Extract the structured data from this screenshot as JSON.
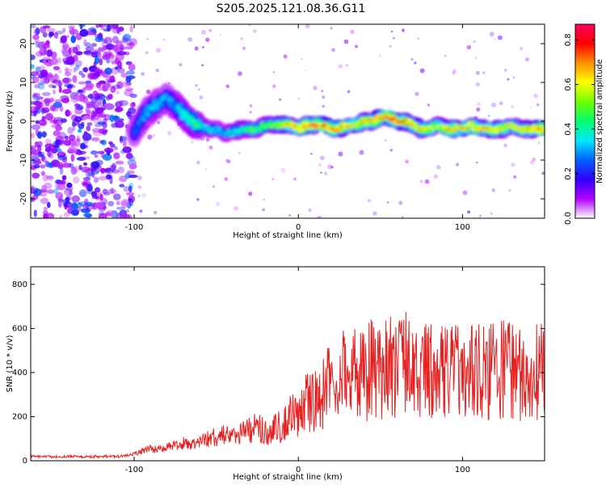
{
  "title": "S205.2025.121.08.36.G11",
  "chart_data": [
    {
      "type": "heatmap",
      "xlabel": "Height of straight line (km)",
      "ylabel": "Frequency (Hz)",
      "xlim": [
        -163,
        150
      ],
      "ylim": [
        -25,
        25
      ],
      "x_ticks": [
        -100,
        0,
        100
      ],
      "y_ticks": [
        -20,
        -10,
        0,
        10,
        20
      ],
      "colorbar": {
        "label": "Normalized spectral amplitude",
        "range": [
          0,
          0.87
        ],
        "ticks": [
          "0.0",
          "0.2",
          "0.4",
          "0.6",
          "0.8"
        ],
        "tick_values": [
          0,
          0.2,
          0.4,
          0.6,
          0.8
        ],
        "colors": [
          "#ffffff",
          "#b000ff",
          "#3000ff",
          "#0060ff",
          "#00e8ff",
          "#00ff70",
          "#70ff00",
          "#ffff00",
          "#ff9000",
          "#ff0000",
          "#ff0060"
        ]
      },
      "noise_region": [
        -163,
        -100
      ],
      "ridge": {
        "x": [
          -100,
          -95,
          -90,
          -85,
          -80,
          -75,
          -70,
          -65,
          -60,
          -55,
          -50,
          -45,
          -40,
          -35,
          -30,
          -25,
          -20,
          -15,
          -10,
          -5,
          0,
          5,
          10,
          15,
          20,
          25,
          30,
          35,
          40,
          45,
          50,
          55,
          60,
          65,
          70,
          75,
          80,
          85,
          90,
          95,
          100,
          105,
          110,
          115,
          120,
          125,
          130,
          135,
          140,
          145,
          150
        ],
        "freq": [
          -3,
          1,
          3,
          5,
          6,
          4,
          2,
          0,
          -1,
          -2,
          -2,
          -3,
          -3,
          -2,
          -2,
          -2,
          -1,
          -1,
          -1,
          -1,
          -2,
          -1,
          -1,
          -1,
          -2,
          -2,
          -1,
          -1,
          0,
          0,
          1,
          1,
          0,
          0,
          -1,
          -2,
          -2,
          -1,
          -2,
          -2,
          -2,
          -1,
          -2,
          -2,
          -2,
          -2,
          -1,
          -2,
          -2,
          -2,
          -2
        ],
        "amplitude": [
          0.3,
          0.35,
          0.4,
          0.4,
          0.35,
          0.35,
          0.45,
          0.5,
          0.5,
          0.45,
          0.4,
          0.4,
          0.45,
          0.5,
          0.55,
          0.55,
          0.55,
          0.6,
          0.7,
          0.8,
          0.75,
          0.8,
          0.85,
          0.8,
          0.85,
          0.85,
          0.8,
          0.7,
          0.75,
          0.8,
          0.85,
          0.87,
          0.85,
          0.8,
          0.75,
          0.7,
          0.7,
          0.7,
          0.75,
          0.75,
          0.75,
          0.75,
          0.8,
          0.8,
          0.75,
          0.75,
          0.7,
          0.7,
          0.75,
          0.8,
          0.8
        ]
      }
    },
    {
      "type": "line",
      "xlabel": "Height of straight line (km)",
      "ylabel": "SNR (10 * v/v)",
      "xlim": [
        -163,
        150
      ],
      "ylim": [
        0,
        880
      ],
      "x_ticks": [
        -100,
        0,
        100
      ],
      "y_ticks": [
        0,
        200,
        400,
        600,
        800
      ],
      "color": "#e82020",
      "series": [
        {
          "x": [
            -163,
            -150,
            -140,
            -130,
            -120,
            -110,
            -105,
            -100,
            -95,
            -90,
            -85,
            -80,
            -75,
            -70,
            -65,
            -60,
            -55,
            -50,
            -45,
            -40,
            -35,
            -30,
            -25,
            -20,
            -15,
            -10,
            -5,
            0,
            5,
            10,
            15,
            20,
            25,
            30,
            35,
            40,
            45,
            50,
            55,
            60,
            65,
            70,
            75,
            80,
            85,
            90,
            95,
            100,
            105,
            110,
            115,
            120,
            125,
            130,
            135,
            140,
            145,
            150
          ],
          "y": [
            20,
            18,
            20,
            18,
            20,
            20,
            22,
            30,
            45,
            55,
            50,
            60,
            70,
            80,
            75,
            90,
            100,
            110,
            120,
            100,
            130,
            140,
            150,
            130,
            140,
            160,
            200,
            220,
            260,
            280,
            300,
            360,
            380,
            420,
            400,
            380,
            420,
            400,
            430,
            420,
            440,
            400,
            420,
            430,
            400,
            420,
            410,
            380,
            420,
            400,
            410,
            400,
            420,
            400,
            390,
            400,
            410,
            400
          ]
        }
      ]
    }
  ]
}
